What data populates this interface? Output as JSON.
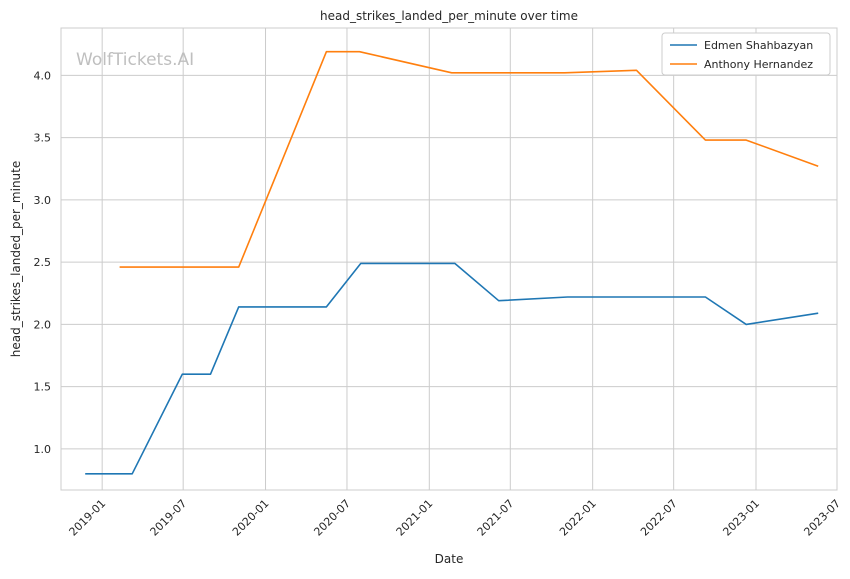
{
  "chart_data": {
    "type": "line",
    "title": "head_strikes_landed_per_minute over time",
    "xlabel": "Date",
    "ylabel": "head_strikes_landed_per_minute",
    "watermark": "WolfTickets.AI",
    "grid": true,
    "legend_position": "top-right",
    "x_axis_type": "date",
    "xlim": [
      "2018-10-01",
      "2023-07-01"
    ],
    "ylim": [
      0.67,
      4.38
    ],
    "x_ticks": [
      "2019-01",
      "2019-07",
      "2020-01",
      "2020-07",
      "2021-01",
      "2021-07",
      "2022-01",
      "2022-07",
      "2023-01",
      "2023-07"
    ],
    "y_ticks": [
      "1.0",
      "1.5",
      "2.0",
      "2.5",
      "3.0",
      "3.5",
      "4.0"
    ],
    "series": [
      {
        "name": "Edmen Shahbazyan",
        "color": "#1f77b4",
        "points": [
          {
            "x": "2018-11-24",
            "y": 0.8
          },
          {
            "x": "2019-03-09",
            "y": 0.8
          },
          {
            "x": "2019-06-29",
            "y": 1.6
          },
          {
            "x": "2019-08-31",
            "y": 1.6
          },
          {
            "x": "2019-11-02",
            "y": 2.14
          },
          {
            "x": "2020-05-16",
            "y": 2.14
          },
          {
            "x": "2020-08-01",
            "y": 2.49
          },
          {
            "x": "2021-02-27",
            "y": 2.49
          },
          {
            "x": "2021-06-05",
            "y": 2.19
          },
          {
            "x": "2021-11-06",
            "y": 2.22
          },
          {
            "x": "2022-09-10",
            "y": 2.22
          },
          {
            "x": "2022-12-10",
            "y": 2.0
          },
          {
            "x": "2023-05-20",
            "y": 2.09
          }
        ]
      },
      {
        "name": "Anthony Hernandez",
        "color": "#ff7f0e",
        "points": [
          {
            "x": "2019-02-09",
            "y": 2.46
          },
          {
            "x": "2019-11-02",
            "y": 2.46
          },
          {
            "x": "2020-05-16",
            "y": 4.19
          },
          {
            "x": "2020-07-29",
            "y": 4.19
          },
          {
            "x": "2021-02-20",
            "y": 4.02
          },
          {
            "x": "2021-10-30",
            "y": 4.02
          },
          {
            "x": "2022-04-09",
            "y": 4.04
          },
          {
            "x": "2022-09-10",
            "y": 3.48
          },
          {
            "x": "2022-12-10",
            "y": 3.48
          },
          {
            "x": "2023-05-20",
            "y": 3.27
          }
        ]
      }
    ]
  }
}
